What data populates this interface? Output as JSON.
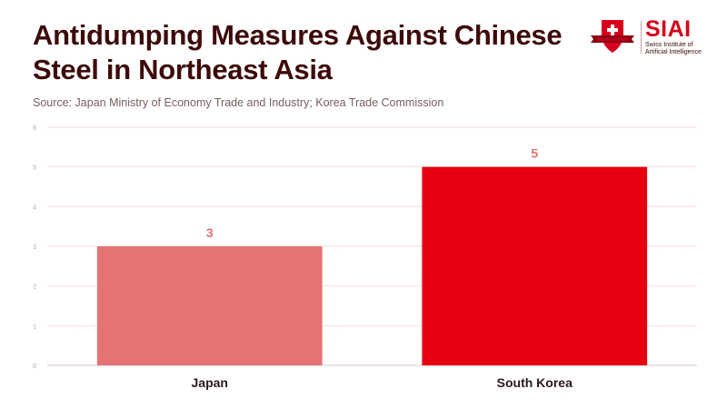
{
  "header": {
    "title": "Antidumping Measures Against Chinese Steel in Northeast Asia",
    "source": "Source: Japan Ministry of Economy Trade and Industry; Korea Trade Commission"
  },
  "logo": {
    "wordmark": "SIAI",
    "subtitle_line1": "Swiss Institute of",
    "subtitle_line2": "Artificial Intelligence",
    "brand_color": "#d6001c"
  },
  "chart_data": {
    "type": "bar",
    "categories": [
      "Japan",
      "South Korea"
    ],
    "values": [
      3,
      5
    ],
    "bar_colors": [
      "#e57373",
      "#e60012"
    ],
    "label_color": "#e57373",
    "ylim": [
      0,
      6
    ],
    "yticks": [
      0,
      1,
      2,
      3,
      4,
      5,
      6
    ],
    "grid": true,
    "legend": "none"
  }
}
